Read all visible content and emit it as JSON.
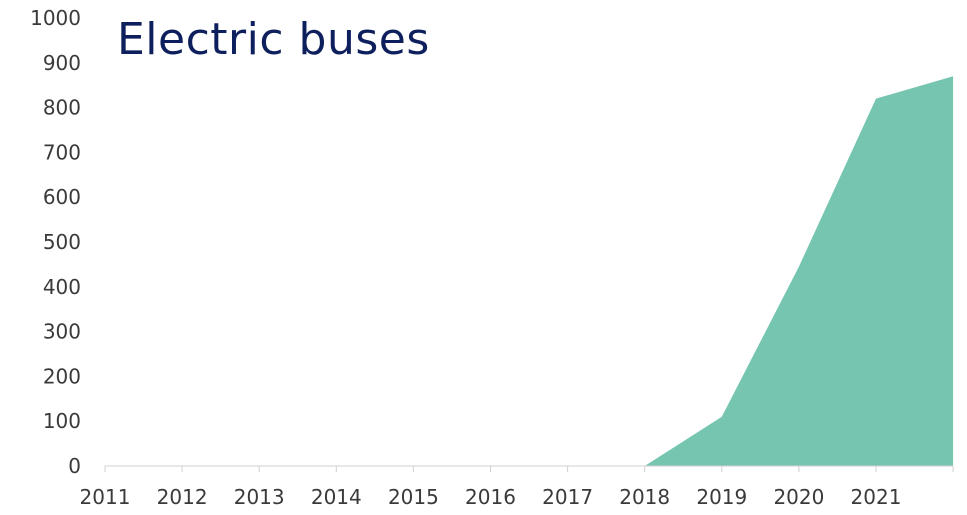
{
  "chart_data": {
    "type": "area",
    "title": "Electric buses",
    "xlabel": "",
    "ylabel": "",
    "x_tick_labels": [
      "2011",
      "2012",
      "2013",
      "2014",
      "2015",
      "2016",
      "2017",
      "2018",
      "2019",
      "2020",
      "2021"
    ],
    "y_tick_labels": [
      "0",
      "100",
      "200",
      "300",
      "400",
      "500",
      "600",
      "700",
      "800",
      "900",
      "1000"
    ],
    "ylim": [
      0,
      1000
    ],
    "x": [
      "2011",
      "2012",
      "2013",
      "2014",
      "2015",
      "2016",
      "2017",
      "2018",
      "2019",
      "2020",
      "2021",
      "2022"
    ],
    "series": [
      {
        "values": [
          0,
          0,
          0,
          0,
          0,
          0,
          0,
          0,
          110,
          445,
          820,
          870
        ],
        "color": "#76c5b0"
      }
    ],
    "grid": false,
    "legend": "none"
  }
}
